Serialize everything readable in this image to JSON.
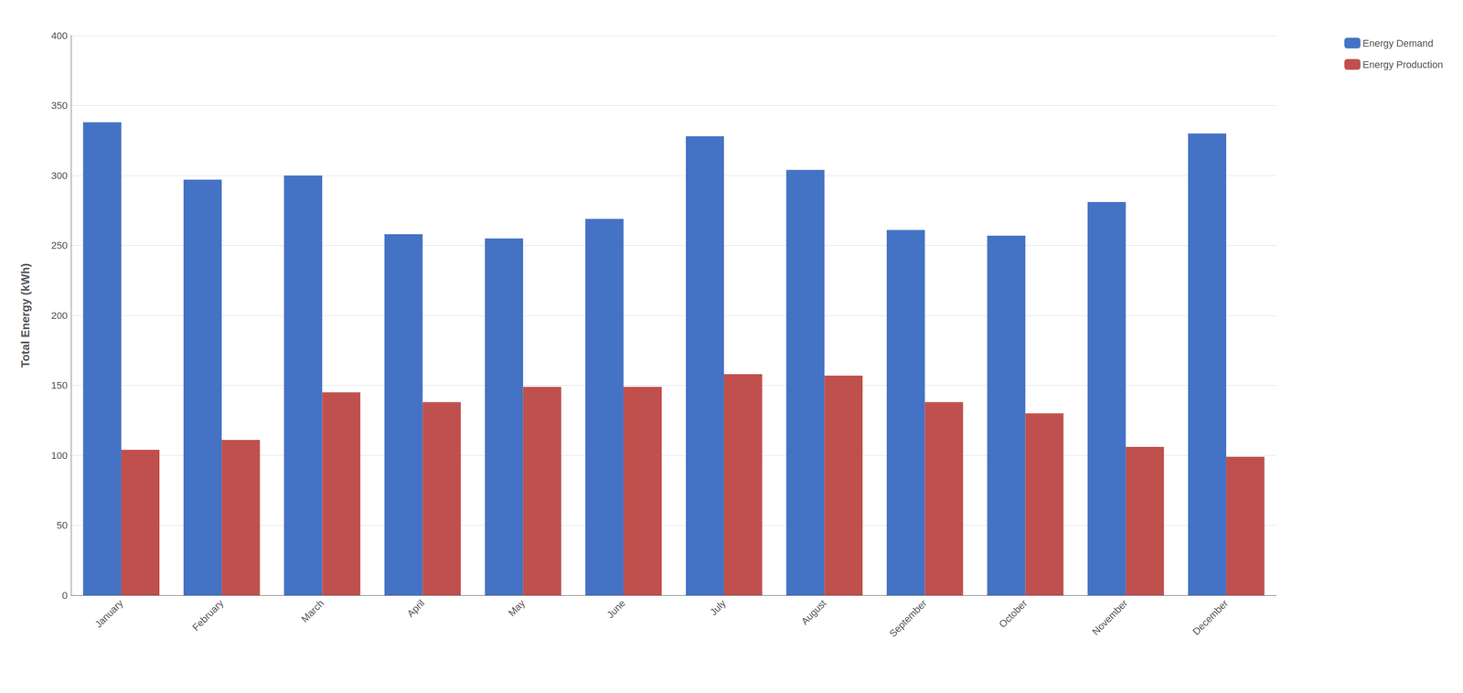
{
  "chart_data": {
    "type": "bar",
    "categories": [
      "January",
      "February",
      "March",
      "April",
      "May",
      "June",
      "July",
      "August",
      "September",
      "October",
      "November",
      "December"
    ],
    "series": [
      {
        "name": "Energy Demand",
        "color": "#4472C4",
        "values": [
          338,
          297,
          300,
          258,
          255,
          269,
          328,
          304,
          261,
          257,
          281,
          330
        ]
      },
      {
        "name": "Energy Production",
        "color": "#C0504D",
        "values": [
          104,
          111,
          145,
          138,
          149,
          149,
          158,
          157,
          138,
          130,
          106,
          99
        ]
      }
    ],
    "ylabel": "Total Energy (kWh)",
    "ylim": [
      0,
      400
    ],
    "yticks": [
      0,
      50,
      100,
      150,
      200,
      250,
      300,
      350,
      400
    ],
    "grid": true,
    "legend": "right"
  }
}
